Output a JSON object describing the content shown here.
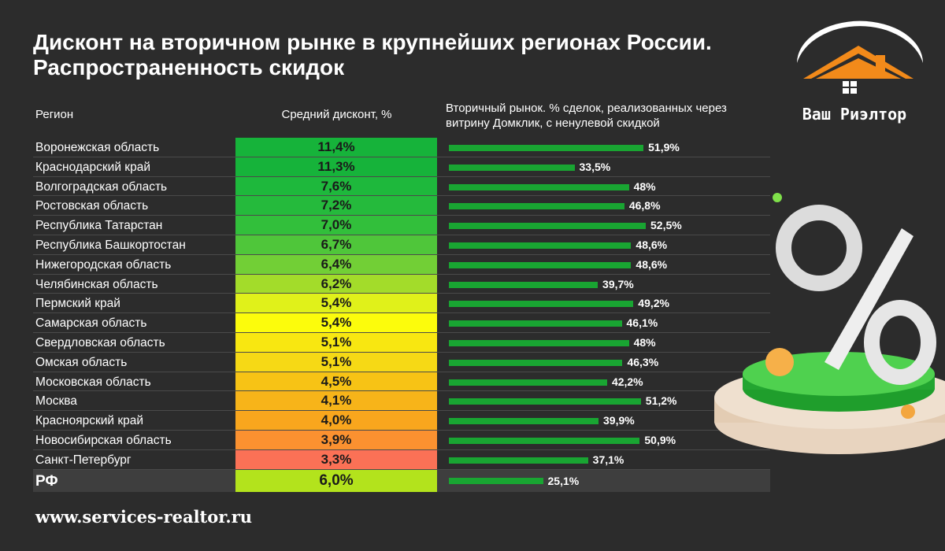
{
  "title": "Дисконт на вторичном рынке в крупнейших регионах России. Распространенность скидок",
  "headers": {
    "region": "Регион",
    "discount": "Средний дисконт, %",
    "share": "Вторичный рынок. % сделок, реализованных через витрину Домклик, с ненулевой скидкой"
  },
  "brand": {
    "name": "Ваш Риэлтор",
    "url": "www.services-realtor.ru"
  },
  "colors": {
    "background": "#2c2c2c",
    "bar": "#19a532"
  },
  "chart_data": {
    "type": "table",
    "title": "Дисконт на вторичном рынке в крупнейших регионах России. Распространенность скидок",
    "columns": [
      "Регион",
      "Средний дисконт, %",
      "Вторичный рынок. % сделок, реализованных через витрину Домклик, с ненулевой скидкой"
    ],
    "rows": [
      {
        "region": "Воронежская область",
        "discount": "11,4%",
        "discount_value": 11.4,
        "discount_color": "#16b33a",
        "share": "51,9%",
        "share_value": 51.9
      },
      {
        "region": "Краснодарский край",
        "discount": "11,3%",
        "discount_value": 11.3,
        "discount_color": "#16b33a",
        "share": "33,5%",
        "share_value": 33.5
      },
      {
        "region": "Волгоградская область",
        "discount": "7,6%",
        "discount_value": 7.6,
        "discount_color": "#1eb83c",
        "share": "48%",
        "share_value": 48.0
      },
      {
        "region": "Ростовская область",
        "discount": "7,2%",
        "discount_value": 7.2,
        "discount_color": "#25ba3c",
        "share": "46,8%",
        "share_value": 46.8
      },
      {
        "region": "Республика Татарстан",
        "discount": "7,0%",
        "discount_value": 7.0,
        "discount_color": "#32bf3b",
        "share": "52,5%",
        "share_value": 52.5
      },
      {
        "region": "Республика Башкортостан",
        "discount": "6,7%",
        "discount_value": 6.7,
        "discount_color": "#4fc63a",
        "share": "48,6%",
        "share_value": 48.6
      },
      {
        "region": "Нижегородская область",
        "discount": "6,4%",
        "discount_value": 6.4,
        "discount_color": "#72cf36",
        "share": "48,6%",
        "share_value": 48.6
      },
      {
        "region": "Челябинская область",
        "discount": "6,2%",
        "discount_value": 6.2,
        "discount_color": "#a3dc2a",
        "share": "39,7%",
        "share_value": 39.7
      },
      {
        "region": "Пермский край",
        "discount": "5,4%",
        "discount_value": 5.4,
        "discount_color": "#e0f11a",
        "share": "49,2%",
        "share_value": 49.2
      },
      {
        "region": "Самарская область",
        "discount": "5,4%",
        "discount_value": 5.4,
        "discount_color": "#fcfc0c",
        "share": "46,1%",
        "share_value": 46.1
      },
      {
        "region": "Свердловская область",
        "discount": "5,1%",
        "discount_value": 5.1,
        "discount_color": "#f8e711",
        "share": "48%",
        "share_value": 48.0
      },
      {
        "region": "Омская область",
        "discount": "5,1%",
        "discount_value": 5.1,
        "discount_color": "#f6d915",
        "share": "46,3%",
        "share_value": 46.3
      },
      {
        "region": "Московская область",
        "discount": "4,5%",
        "discount_value": 4.5,
        "discount_color": "#f7c315",
        "share": "42,2%",
        "share_value": 42.2
      },
      {
        "region": "Москва",
        "discount": "4,1%",
        "discount_value": 4.1,
        "discount_color": "#f7b419",
        "share": "51,2%",
        "share_value": 51.2
      },
      {
        "region": "Красноярский край",
        "discount": "4,0%",
        "discount_value": 4.0,
        "discount_color": "#f9a61d",
        "share": "39,9%",
        "share_value": 39.9
      },
      {
        "region": "Новосибирская область",
        "discount": "3,9%",
        "discount_value": 3.9,
        "discount_color": "#fb9130",
        "share": "50,9%",
        "share_value": 50.9
      },
      {
        "region": "Санкт-Петербург",
        "discount": "3,3%",
        "discount_value": 3.3,
        "discount_color": "#fb7156",
        "share": "37,1%",
        "share_value": 37.1
      }
    ],
    "total": {
      "region": "РФ",
      "discount": "6,0%",
      "discount_value": 6.0,
      "discount_color": "#b3e31c",
      "share": "25,1%",
      "share_value": 25.1
    },
    "share_axis_max": 52.5
  }
}
